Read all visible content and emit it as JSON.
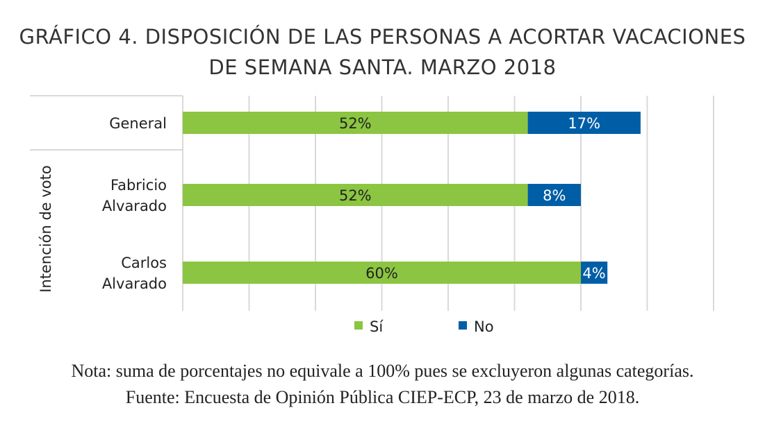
{
  "chart_data": {
    "type": "bar",
    "orientation": "horizontal",
    "stacked": true,
    "title_line1": "GRÁFICO 4. DISPOSICIÓN DE LAS PERSONAS A ACORTAR VACACIONES",
    "title_line2": "DE SEMANA SANTA. MARZO 2018",
    "ylabel": "Intención de voto",
    "categories": [
      "General",
      "Fabricio\nAlvarado",
      "Carlos\nAlvarado"
    ],
    "series": [
      {
        "name": "Sí",
        "color": "#8bc541",
        "values": [
          52,
          52,
          60
        ],
        "labels": [
          "52%",
          "52%",
          "60%"
        ]
      },
      {
        "name": "No",
        "color": "#005ea6",
        "values": [
          17,
          8,
          4
        ],
        "labels": [
          "17%",
          "8%",
          "4%"
        ]
      }
    ],
    "xlim": [
      0,
      80
    ],
    "grid": true,
    "legend_position": "bottom"
  },
  "notes": {
    "nota": "Nota: suma de porcentajes no equivale a 100% pues se excluyeron algunas categorías.",
    "fuente": "Fuente: Encuesta de Opinión Pública CIEP-ECP, 23 de marzo de 2018."
  }
}
